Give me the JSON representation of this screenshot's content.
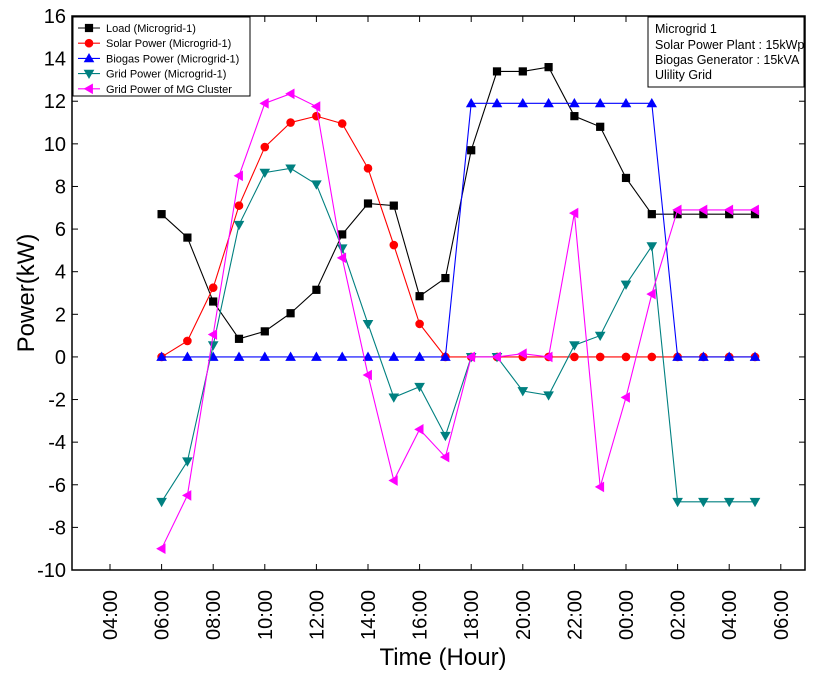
{
  "chart_data": {
    "type": "line",
    "title": "",
    "xlabel": "Time (Hour)",
    "ylabel": "Power(kW)",
    "ylim": [
      -10,
      16
    ],
    "yticks": [
      -10,
      -8,
      -6,
      -4,
      -2,
      0,
      2,
      4,
      6,
      8,
      10,
      12,
      14,
      16
    ],
    "x_ticks": [
      "04:00",
      "06:00",
      "08:00",
      "10:00",
      "12:00",
      "14:00",
      "16:00",
      "18:00",
      "20:00",
      "22:00",
      "00:00",
      "02:00",
      "04:00",
      "06:00"
    ],
    "x": [
      "06:00",
      "07:00",
      "08:00",
      "09:00",
      "10:00",
      "11:00",
      "12:00",
      "13:00",
      "14:00",
      "15:00",
      "16:00",
      "17:00",
      "18:00",
      "19:00",
      "20:00",
      "21:00",
      "22:00",
      "23:00",
      "00:00",
      "01:00",
      "02:00",
      "03:00",
      "04:00",
      "05:00"
    ],
    "legend_position": "top-left",
    "grid": false,
    "series": [
      {
        "name": "Load (Microgrid-1)",
        "color": "#000000",
        "marker": "square",
        "values": [
          6.7,
          5.6,
          2.6,
          0.85,
          1.2,
          2.05,
          3.15,
          5.75,
          7.2,
          7.1,
          2.85,
          3.7,
          9.7,
          13.4,
          13.4,
          13.6,
          11.3,
          10.8,
          8.4,
          6.7,
          6.7,
          6.7,
          6.7,
          6.7
        ]
      },
      {
        "name": "Solar Power (Microgrid-1)",
        "color": "#ff0000",
        "marker": "circle",
        "values": [
          0,
          0.75,
          3.25,
          7.1,
          9.85,
          11.0,
          11.3,
          10.95,
          8.85,
          5.25,
          1.55,
          0,
          0,
          0,
          0,
          0,
          0,
          0,
          0,
          0,
          0,
          0,
          0,
          0
        ]
      },
      {
        "name": "Biogas Power (Microgrid-1)",
        "color": "#0000ff",
        "marker": "triangle-up",
        "values": [
          0,
          0,
          0,
          0,
          0,
          0,
          0,
          0,
          0,
          0,
          0,
          0,
          11.9,
          11.9,
          11.9,
          11.9,
          11.9,
          11.9,
          11.9,
          11.9,
          0,
          0,
          0,
          0
        ]
      },
      {
        "name": "Grid Power (Microgrid-1)",
        "color": "#008080",
        "marker": "triangle-down",
        "values": [
          -6.8,
          -4.9,
          0.55,
          6.2,
          8.65,
          8.85,
          8.1,
          5.1,
          1.55,
          -1.9,
          -1.4,
          -3.7,
          0,
          0,
          -1.6,
          -1.8,
          0.55,
          1.0,
          3.4,
          5.2,
          -6.8,
          -6.8,
          -6.8,
          -6.8
        ]
      },
      {
        "name": "Grid Power of MG Cluster",
        "color": "#ff00ff",
        "marker": "triangle-left",
        "values": [
          -9.0,
          -6.5,
          1.05,
          8.5,
          11.9,
          12.35,
          11.75,
          4.65,
          -0.85,
          -5.8,
          -3.4,
          -4.7,
          0,
          0,
          0.15,
          0,
          6.75,
          -6.1,
          -1.9,
          2.95,
          6.9,
          6.9,
          6.9,
          6.9
        ]
      }
    ]
  },
  "info_box": {
    "lines": [
      "Microgrid 1",
      "Solar Power Plant : 15kWp",
      "Biogas Generator : 15kVA",
      "Ulility Grid"
    ]
  }
}
